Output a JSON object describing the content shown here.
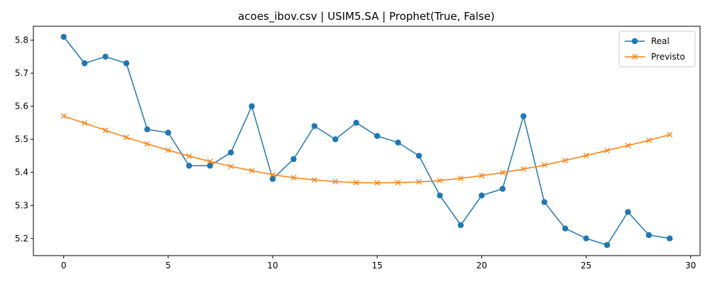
{
  "chart_data": {
    "type": "line",
    "title": "acoes_ibov.csv | USIM5.SA | Prophet(True, False)",
    "xlabel": "",
    "ylabel": "",
    "xlim": [
      -1.45,
      30.45
    ],
    "ylim": [
      5.148,
      5.842
    ],
    "x_ticks": [
      0,
      5,
      10,
      15,
      20,
      25,
      30
    ],
    "x_tick_labels": [
      "0",
      "5",
      "10",
      "15",
      "20",
      "25",
      "30"
    ],
    "y_ticks": [
      5.2,
      5.3,
      5.4,
      5.5,
      5.6,
      5.7,
      5.8
    ],
    "y_tick_labels": [
      "5.2",
      "5.3",
      "5.4",
      "5.5",
      "5.6",
      "5.7",
      "5.8"
    ],
    "grid": false,
    "legend_position": "top-right",
    "x": [
      0,
      1,
      2,
      3,
      4,
      5,
      6,
      7,
      8,
      9,
      10,
      11,
      12,
      13,
      14,
      15,
      16,
      17,
      18,
      19,
      20,
      21,
      22,
      23,
      24,
      25,
      26,
      27,
      28,
      29
    ],
    "series": [
      {
        "name": "Real",
        "color": "#1f77b4",
        "marker": "circle",
        "values": [
          5.81,
          5.73,
          5.75,
          5.73,
          5.53,
          5.52,
          5.42,
          5.42,
          5.46,
          5.6,
          5.38,
          5.44,
          5.54,
          5.5,
          5.55,
          5.51,
          5.49,
          5.45,
          5.33,
          5.24,
          5.33,
          5.35,
          5.57,
          5.31,
          5.23,
          5.2,
          5.18,
          5.28,
          5.21,
          5.2
        ]
      },
      {
        "name": "Previsto",
        "color": "#ff7f0e",
        "marker": "x",
        "values": [
          5.57,
          5.549,
          5.527,
          5.506,
          5.486,
          5.467,
          5.449,
          5.433,
          5.418,
          5.405,
          5.393,
          5.384,
          5.377,
          5.372,
          5.369,
          5.368,
          5.369,
          5.371,
          5.375,
          5.382,
          5.39,
          5.399,
          5.41,
          5.422,
          5.436,
          5.451,
          5.466,
          5.481,
          5.497,
          5.514
        ]
      }
    ]
  }
}
